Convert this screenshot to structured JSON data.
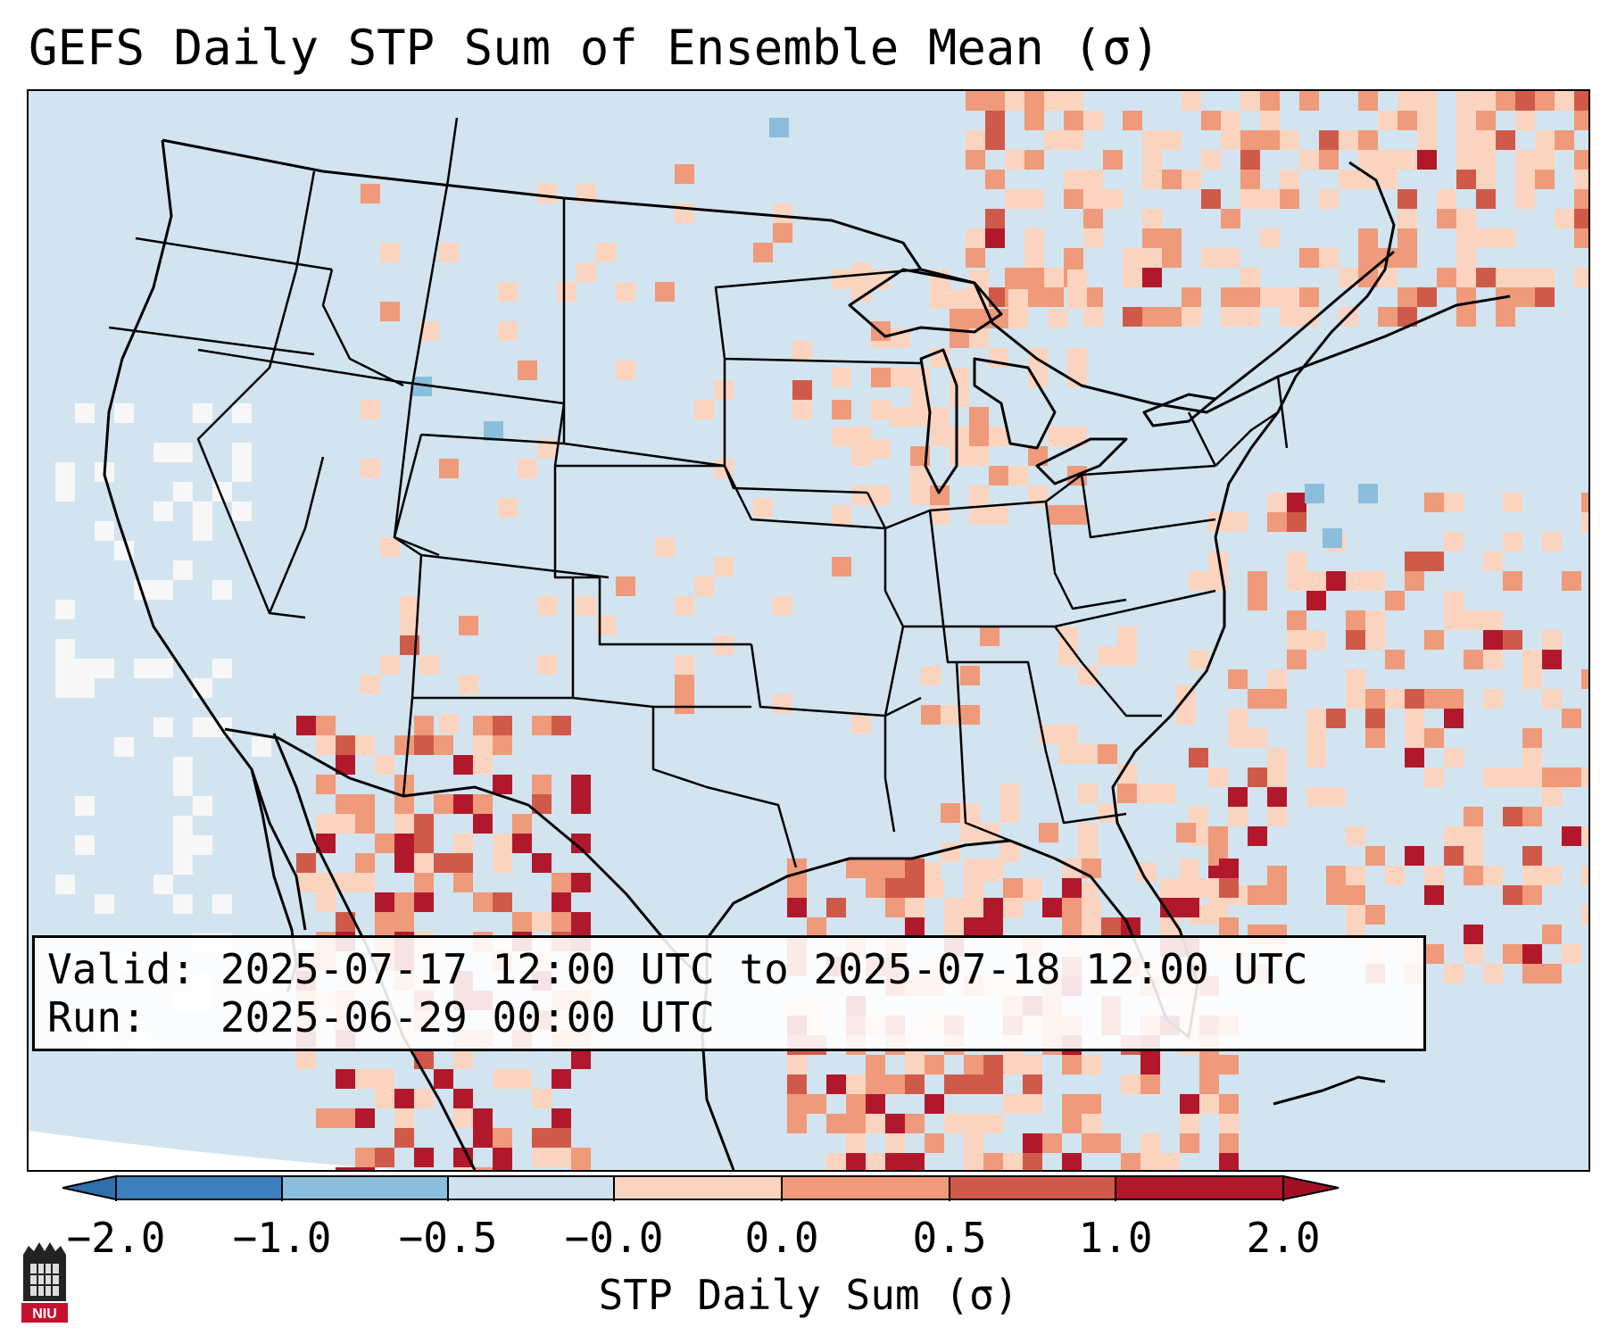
{
  "title": "GEFS Daily STP Sum of Ensemble Mean (σ)",
  "info": {
    "valid_label": "Valid:",
    "valid_value": "2025-07-17 12:00 UTC to 2025-07-18 12:00 UTC",
    "run_label": "Run:",
    "run_value": "2025-06-29 00:00 UTC"
  },
  "colorbar": {
    "label": "STP Daily Sum (σ)",
    "ticks": [
      "−2.0",
      "−1.0",
      "−0.5",
      "−0.0",
      "0.0",
      "0.5",
      "1.0",
      "2.0"
    ],
    "colors": [
      "#3c7fbc",
      "#8bbedc",
      "#cfe2ee",
      "#f5f5f5",
      "#fbd4c0",
      "#ef9a7a",
      "#d05a4a",
      "#b2182b"
    ],
    "extend_low_color": "#2f6fae",
    "extend_high_color": "#a30f25"
  },
  "map": {
    "background_color": "#d2e4ef",
    "land_mask_color": "#d2e4ef",
    "outside_domain_color": "#ffffff",
    "features": [
      "US states",
      "Canada provinces",
      "Mexico",
      "Great Lakes",
      "Gulf of Mexico",
      "Cuba"
    ]
  },
  "logo": {
    "name": "niu-logo",
    "text": "NIU"
  }
}
